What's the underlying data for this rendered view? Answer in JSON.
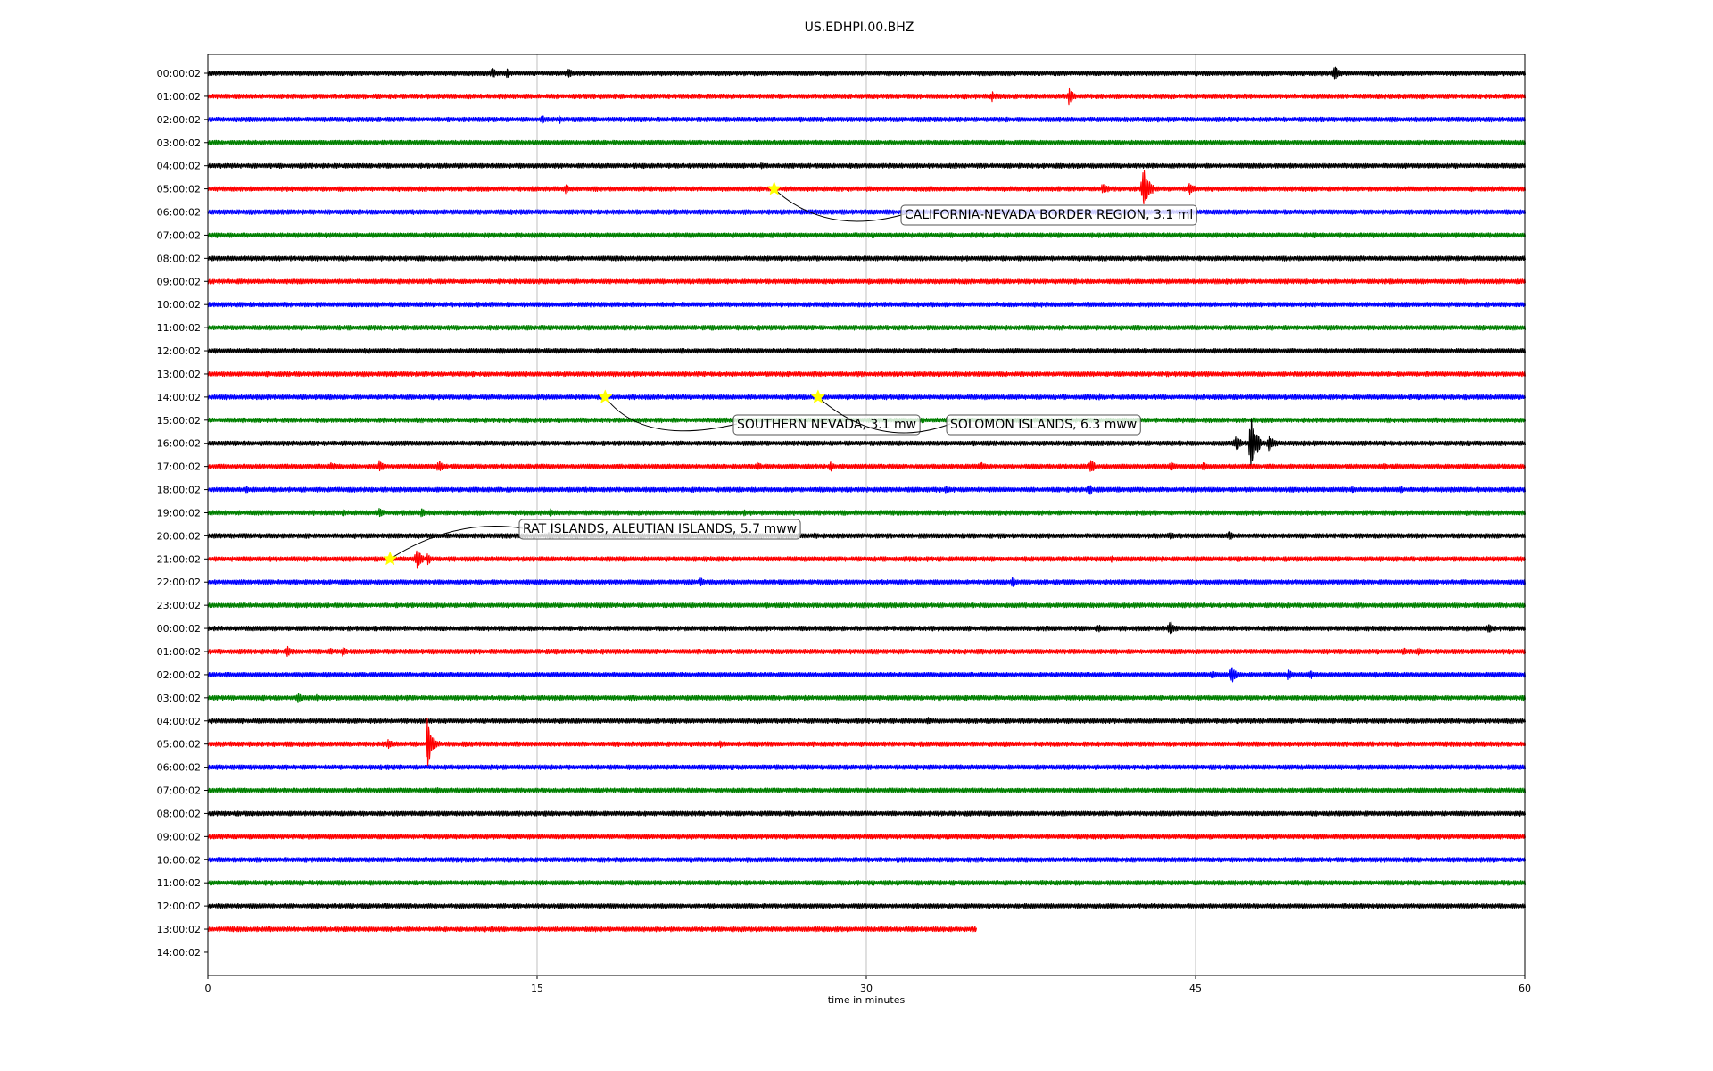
{
  "chart_data": {
    "type": "line",
    "title": "US.EDHPI.00.BHZ",
    "xlabel": "time in minutes",
    "ylabel": "",
    "xlim": [
      0,
      60
    ],
    "xticks": [
      0,
      15,
      30,
      45,
      60
    ],
    "grid": "vertical lines at x ticks",
    "row_labels": [
      "00:00:02",
      "01:00:02",
      "02:00:02",
      "03:00:02",
      "04:00:02",
      "05:00:02",
      "06:00:02",
      "07:00:02",
      "08:00:02",
      "09:00:02",
      "10:00:02",
      "11:00:02",
      "12:00:02",
      "13:00:02",
      "14:00:02",
      "15:00:02",
      "16:00:02",
      "17:00:02",
      "18:00:02",
      "19:00:02",
      "20:00:02",
      "21:00:02",
      "22:00:02",
      "23:00:02",
      "00:00:02",
      "01:00:02",
      "02:00:02",
      "03:00:02",
      "04:00:02",
      "05:00:02",
      "06:00:02",
      "07:00:02",
      "08:00:02",
      "09:00:02",
      "10:00:02",
      "11:00:02",
      "12:00:02",
      "13:00:02",
      "14:00:02"
    ],
    "trace_colors": [
      "#000000",
      "#ff0000",
      "#0000ff",
      "#008000"
    ],
    "last_trace_end_minutes": 35,
    "events": [
      {
        "label": "CALIFORNIA-NEVADA BORDER REGION, 3.1 ml",
        "row": 5,
        "minute": 25.8
      },
      {
        "label": "SOUTHERN NEVADA, 3.1 mw",
        "row": 14,
        "minute": 18.1
      },
      {
        "label": "SOLOMON ISLANDS, 6.3 mww",
        "row": 14,
        "minute": 27.8
      },
      {
        "label": "RAT ISLANDS, ALEUTIAN ISLANDS, 5.7 mww",
        "row": 21,
        "minute": 8.3
      }
    ],
    "star_color": "#ffff00",
    "bursts": [
      {
        "row": 0,
        "minute": 12.9,
        "amp": 6
      },
      {
        "row": 0,
        "minute": 13.6,
        "amp": 5
      },
      {
        "row": 0,
        "minute": 16.4,
        "amp": 5
      },
      {
        "row": 0,
        "minute": 48.1,
        "amp": 4
      },
      {
        "row": 0,
        "minute": 51.3,
        "amp": 8
      },
      {
        "row": 1,
        "minute": 5.1,
        "amp": 3
      },
      {
        "row": 1,
        "minute": 35.7,
        "amp": 5
      },
      {
        "row": 1,
        "minute": 39.2,
        "amp": 8
      },
      {
        "row": 2,
        "minute": 15.2,
        "amp": 5
      },
      {
        "row": 2,
        "minute": 16.0,
        "amp": 4
      },
      {
        "row": 4,
        "minute": 25.2,
        "amp": 4
      },
      {
        "row": 5,
        "minute": 16.3,
        "amp": 5
      },
      {
        "row": 5,
        "minute": 40.8,
        "amp": 8
      },
      {
        "row": 5,
        "minute": 42.6,
        "amp": 22
      },
      {
        "row": 5,
        "minute": 44.7,
        "amp": 8
      },
      {
        "row": 14,
        "minute": 40.6,
        "amp": 4
      },
      {
        "row": 16,
        "minute": 46.8,
        "amp": 9
      },
      {
        "row": 16,
        "minute": 47.5,
        "amp": 28
      },
      {
        "row": 16,
        "minute": 48.3,
        "amp": 10
      },
      {
        "row": 17,
        "minute": 5.6,
        "amp": 5
      },
      {
        "row": 17,
        "minute": 7.8,
        "amp": 6
      },
      {
        "row": 17,
        "minute": 10.5,
        "amp": 7
      },
      {
        "row": 17,
        "minute": 25.0,
        "amp": 5
      },
      {
        "row": 17,
        "minute": 28.3,
        "amp": 6
      },
      {
        "row": 17,
        "minute": 35.2,
        "amp": 6
      },
      {
        "row": 17,
        "minute": 40.2,
        "amp": 7
      },
      {
        "row": 17,
        "minute": 43.9,
        "amp": 6
      },
      {
        "row": 17,
        "minute": 45.3,
        "amp": 5
      },
      {
        "row": 17,
        "minute": 53.5,
        "amp": 4
      },
      {
        "row": 18,
        "minute": 1.7,
        "amp": 4
      },
      {
        "row": 18,
        "minute": 33.6,
        "amp": 5
      },
      {
        "row": 18,
        "minute": 40.1,
        "amp": 6
      },
      {
        "row": 18,
        "minute": 52.1,
        "amp": 4
      },
      {
        "row": 18,
        "minute": 54.3,
        "amp": 4
      },
      {
        "row": 19,
        "minute": 6.1,
        "amp": 4
      },
      {
        "row": 19,
        "minute": 7.8,
        "amp": 6
      },
      {
        "row": 19,
        "minute": 9.7,
        "amp": 5
      },
      {
        "row": 19,
        "minute": 15.6,
        "amp": 4
      },
      {
        "row": 19,
        "minute": 19.1,
        "amp": 3
      },
      {
        "row": 19,
        "minute": 24.4,
        "amp": 3
      },
      {
        "row": 19,
        "minute": 35.6,
        "amp": 3
      },
      {
        "row": 20,
        "minute": 15.5,
        "amp": 5
      },
      {
        "row": 20,
        "minute": 20.7,
        "amp": 5
      },
      {
        "row": 20,
        "minute": 27.6,
        "amp": 4
      },
      {
        "row": 20,
        "minute": 43.8,
        "amp": 5
      },
      {
        "row": 20,
        "minute": 46.5,
        "amp": 5
      },
      {
        "row": 21,
        "minute": 9.5,
        "amp": 11
      },
      {
        "row": 21,
        "minute": 10.0,
        "amp": 5
      },
      {
        "row": 21,
        "minute": 41.1,
        "amp": 4
      },
      {
        "row": 22,
        "minute": 22.4,
        "amp": 5
      },
      {
        "row": 22,
        "minute": 36.6,
        "amp": 5
      },
      {
        "row": 23,
        "minute": 1.4,
        "amp": 3
      },
      {
        "row": 24,
        "minute": 40.5,
        "amp": 5
      },
      {
        "row": 24,
        "minute": 43.8,
        "amp": 9
      },
      {
        "row": 24,
        "minute": 58.3,
        "amp": 5
      },
      {
        "row": 25,
        "minute": 3.6,
        "amp": 6
      },
      {
        "row": 25,
        "minute": 5.5,
        "amp": 5
      },
      {
        "row": 25,
        "minute": 6.1,
        "amp": 5
      },
      {
        "row": 25,
        "minute": 54.4,
        "amp": 5
      },
      {
        "row": 25,
        "minute": 55.1,
        "amp": 5
      },
      {
        "row": 26,
        "minute": 45.7,
        "amp": 7
      },
      {
        "row": 26,
        "minute": 46.6,
        "amp": 9
      },
      {
        "row": 26,
        "minute": 49.2,
        "amp": 5
      },
      {
        "row": 26,
        "minute": 50.2,
        "amp": 5
      },
      {
        "row": 27,
        "minute": 4.1,
        "amp": 5
      },
      {
        "row": 27,
        "minute": 4.9,
        "amp": 4
      },
      {
        "row": 28,
        "minute": 32.8,
        "amp": 5
      },
      {
        "row": 29,
        "minute": 1.0,
        "amp": 4
      },
      {
        "row": 29,
        "minute": 8.2,
        "amp": 6
      },
      {
        "row": 29,
        "minute": 10.0,
        "amp": 24
      },
      {
        "row": 29,
        "minute": 23.3,
        "amp": 4
      },
      {
        "row": 31,
        "minute": 10.4,
        "amp": 4
      }
    ]
  }
}
